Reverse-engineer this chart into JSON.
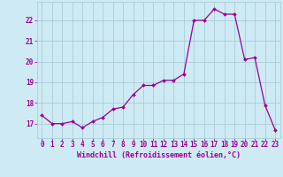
{
  "x": [
    0,
    1,
    2,
    3,
    4,
    5,
    6,
    7,
    8,
    9,
    10,
    11,
    12,
    13,
    14,
    15,
    16,
    17,
    18,
    19,
    20,
    21,
    22,
    23
  ],
  "y": [
    17.4,
    17.0,
    17.0,
    17.1,
    16.8,
    17.1,
    17.3,
    17.7,
    17.8,
    18.4,
    18.85,
    18.85,
    19.1,
    19.1,
    19.4,
    22.0,
    22.0,
    22.55,
    22.3,
    22.3,
    20.1,
    20.2,
    17.9,
    16.7
  ],
  "line_color": "#990099",
  "marker": "D",
  "markersize": 2.0,
  "linewidth": 0.9,
  "xlabel": "Windchill (Refroidissement éolien,°C)",
  "xlabel_fontsize": 6.0,
  "ylabel_ticks": [
    17,
    18,
    19,
    20,
    21,
    22
  ],
  "ylim": [
    16.3,
    22.9
  ],
  "xlim": [
    -0.5,
    23.5
  ],
  "bg_color": "#ceeaf4",
  "grid_color": "#aacdd8",
  "tick_fontsize": 5.5,
  "title": ""
}
